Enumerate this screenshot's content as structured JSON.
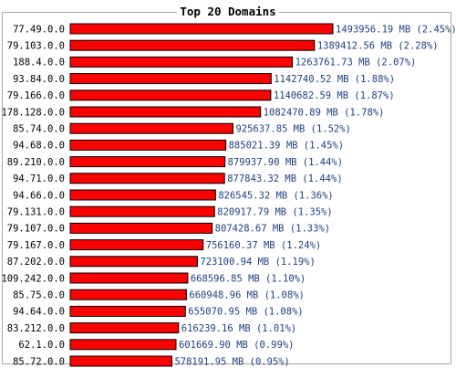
{
  "colors": {
    "bar": "#ff0000",
    "bar_border": "#000000",
    "value_text": "#1f3f7f",
    "frame": "#a8a8a8"
  },
  "chart_data": {
    "type": "bar",
    "orientation": "horizontal",
    "title": "Top 20 Domains",
    "categories": [
      "77.49.0.0",
      "79.103.0.0",
      "188.4.0.0",
      "93.84.0.0",
      "79.166.0.0",
      "178.128.0.0",
      "85.74.0.0",
      "94.68.0.0",
      "89.210.0.0",
      "94.71.0.0",
      "94.66.0.0",
      "79.131.0.0",
      "79.107.0.0",
      "79.167.0.0",
      "87.202.0.0",
      "109.242.0.0",
      "85.75.0.0",
      "94.64.0.0",
      "83.212.0.0",
      "62.1.0.0",
      "85.72.0.0"
    ],
    "values": [
      1493956.19,
      1389412.56,
      1263761.73,
      1142740.52,
      1140682.59,
      1082470.89,
      925637.85,
      885021.39,
      879937.9,
      877843.32,
      826545.32,
      820917.79,
      807428.67,
      756160.37,
      723100.94,
      668596.85,
      660948.96,
      655070.95,
      616239.16,
      601669.9,
      578191.95
    ],
    "value_labels": [
      "1493956.19 MB (2.45%)",
      "1389412.56 MB (2.28%)",
      "1263761.73 MB (2.07%)",
      "1142740.52 MB (1.88%)",
      "1140682.59 MB (1.87%)",
      "1082470.89 MB (1.78%)",
      "925637.85 MB (1.52%)",
      "885021.39 MB (1.45%)",
      "879937.90 MB (1.44%)",
      "877843.32 MB (1.44%)",
      "826545.32 MB (1.36%)",
      "820917.79 MB (1.35%)",
      "807428.67 MB (1.33%)",
      "756160.37 MB (1.24%)",
      "723100.94 MB (1.19%)",
      "668596.85 MB (1.10%)",
      "660948.96 MB (1.08%)",
      "655070.95 MB (1.08%)",
      "616239.16 MB (1.01%)",
      "601669.90 MB (0.99%)",
      "578191.95 MB (0.95%)"
    ],
    "unit": "MB",
    "xlim": [
      0,
      1493956.19
    ],
    "grid": false,
    "legend": false
  }
}
